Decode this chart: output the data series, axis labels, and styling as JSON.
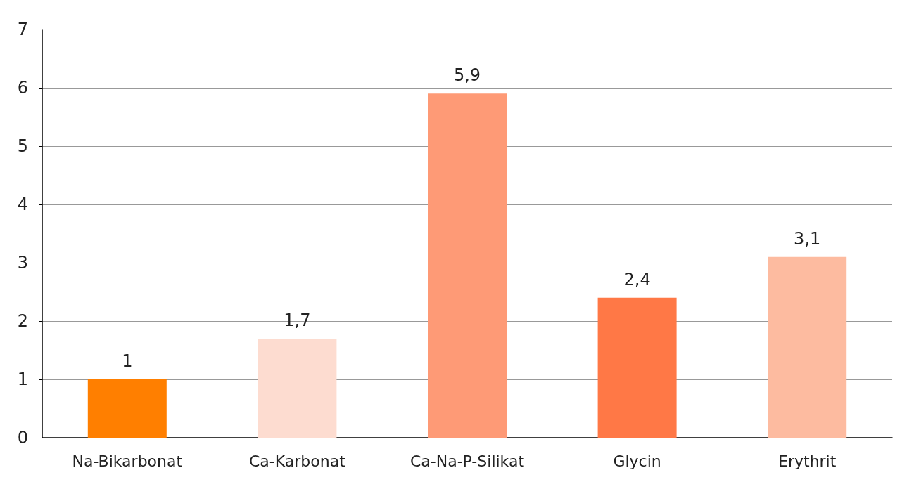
{
  "chart_data": {
    "type": "bar",
    "categories": [
      "Na-Bikarbonat",
      "Ca-Karbonat",
      "Ca-Na-P-Silikat",
      "Glycin",
      "Erythrit"
    ],
    "values": [
      1,
      1.7,
      5.9,
      2.4,
      3.1
    ],
    "colors": [
      "#ff7f00",
      "#fddcd0",
      "#fe9a76",
      "#ff7846",
      "#fdbba0"
    ],
    "value_labels": [
      "1",
      "1,7",
      "5,9",
      "2,4",
      "3,1"
    ],
    "ylim": [
      0,
      7
    ],
    "yticks": [
      0,
      1,
      2,
      3,
      4,
      5,
      6,
      7
    ],
    "grid": "y"
  }
}
